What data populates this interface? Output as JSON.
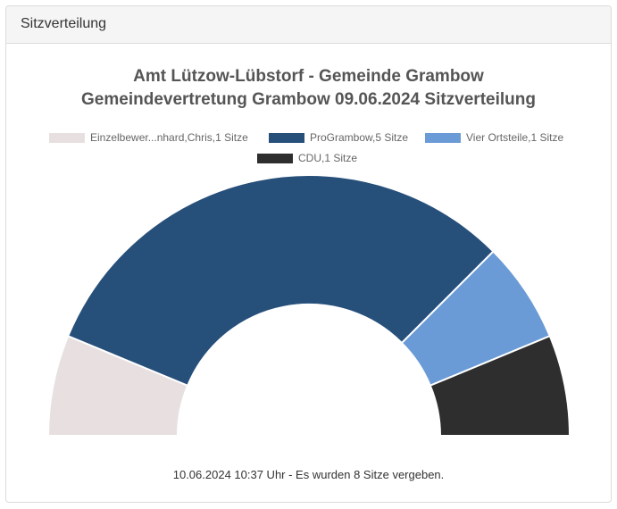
{
  "panel": {
    "heading": "Sitzverteilung"
  },
  "chart_data": {
    "type": "pie",
    "variant": "half-donut",
    "title_lines": [
      "Amt Lützow-Lübstorf - Gemeinde Grambow",
      "Gemeindevertretung Grambow 09.06.2024 Sitzverteilung"
    ],
    "categories": [
      "Einzelbewer...nhard,Chris",
      "ProGrambow",
      "Vier Ortsteile",
      "CDU"
    ],
    "values": [
      1,
      5,
      1,
      1
    ],
    "legend_labels": [
      "Einzelbewer...nhard,Chris,1 Sitze",
      "ProGrambow,5 Sitze",
      "Vier Ortsteile,1 Sitze",
      "CDU,1 Sitze"
    ],
    "colors": [
      "#e8e0e0",
      "#264f7a",
      "#6a9bd6",
      "#2e2e2e"
    ],
    "legend_position": "top"
  },
  "footer": {
    "note": "10.06.2024 10:37 Uhr - Es wurden 8 Sitze vergeben."
  }
}
